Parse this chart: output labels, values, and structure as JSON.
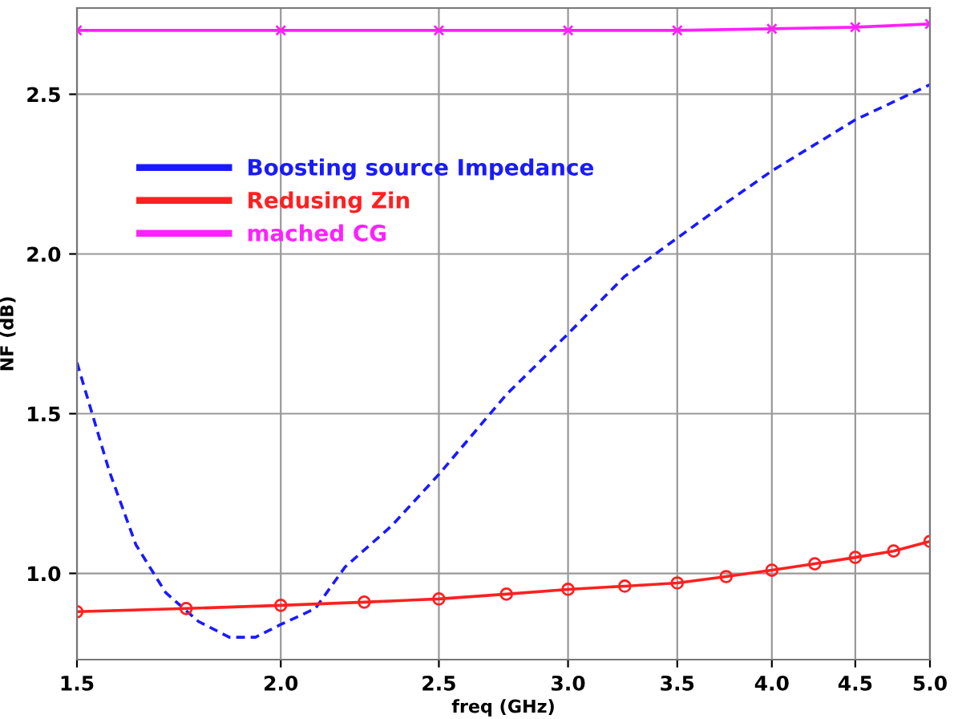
{
  "chart_data": {
    "type": "line",
    "xlabel": "freq (GHz)",
    "ylabel": "NF (dB)",
    "log": "x",
    "xlim": [
      1.5,
      5.0
    ],
    "xticks": [
      {
        "value": 1.5,
        "label": "1.5"
      },
      {
        "value": 2.0,
        "label": "2.0"
      },
      {
        "value": 2.5,
        "label": "2.5"
      },
      {
        "value": 3.0,
        "label": "3.0"
      },
      {
        "value": 3.5,
        "label": "3.5"
      },
      {
        "value": 4.0,
        "label": "4.0"
      },
      {
        "value": 4.5,
        "label": "4.5"
      },
      {
        "value": 5.0,
        "label": "5.0"
      }
    ],
    "ylim": [
      0.73,
      2.77
    ],
    "yticks": [
      {
        "value": 1.0,
        "label": "1.0"
      },
      {
        "value": 1.5,
        "label": "1.5"
      },
      {
        "value": 2.0,
        "label": "2.0"
      },
      {
        "value": 2.5,
        "label": "2.5"
      }
    ],
    "grid": true,
    "legend": "top left",
    "series": [
      {
        "name": "Boosting source Impedance",
        "color": "#1a1aff",
        "line_style": "dashed",
        "marker": "none",
        "x": [
          1.5,
          1.57,
          1.63,
          1.7,
          1.78,
          1.86,
          1.93,
          2.0,
          2.1,
          2.19,
          2.34,
          2.5,
          2.75,
          3.0,
          3.25,
          3.5,
          3.75,
          4.0,
          4.5,
          5.0
        ],
        "values": [
          1.66,
          1.32,
          1.09,
          0.94,
          0.85,
          0.8,
          0.8,
          0.84,
          0.89,
          1.02,
          1.15,
          1.31,
          1.56,
          1.75,
          1.93,
          2.05,
          2.16,
          2.26,
          2.42,
          2.53
        ]
      },
      {
        "name": "Redusing Zin",
        "color": "#ff2020",
        "line_style": "solid",
        "marker": "circle",
        "x": [
          1.5,
          1.75,
          2.0,
          2.25,
          2.5,
          2.75,
          3.0,
          3.25,
          3.5,
          3.75,
          4.0,
          4.25,
          4.5,
          4.75,
          5.0
        ],
        "values": [
          0.88,
          0.89,
          0.9,
          0.91,
          0.92,
          0.935,
          0.95,
          0.96,
          0.97,
          0.99,
          1.01,
          1.03,
          1.05,
          1.07,
          1.1
        ]
      },
      {
        "name": "mached CG",
        "color": "#ff20ff",
        "line_style": "solid",
        "marker": "cross",
        "x": [
          1.5,
          2.0,
          2.5,
          3.0,
          3.5,
          4.0,
          4.5,
          5.0
        ],
        "values": [
          2.7,
          2.7,
          2.7,
          2.7,
          2.7,
          2.705,
          2.71,
          2.72
        ]
      }
    ]
  }
}
